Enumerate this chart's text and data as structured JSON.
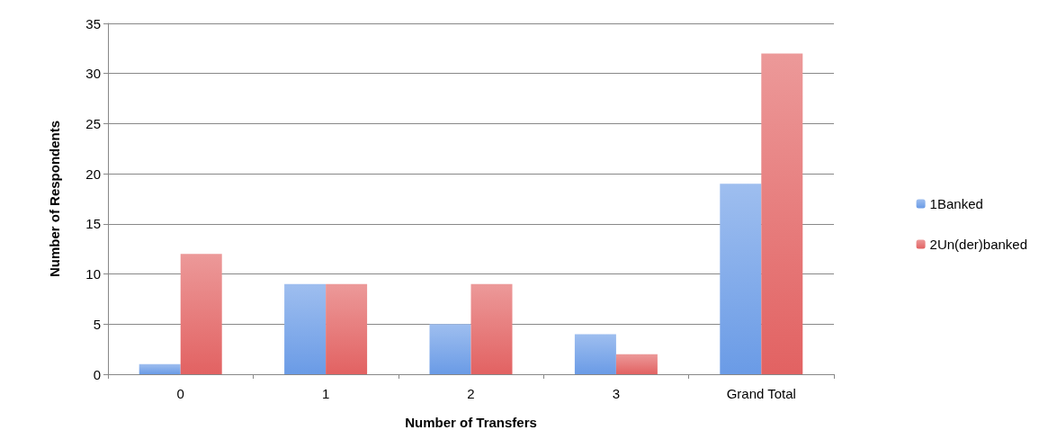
{
  "chart_data": {
    "type": "bar",
    "xlabel": "Number of Transfers",
    "ylabel": "Number of Respondents",
    "categories": [
      "0",
      "1",
      "2",
      "3",
      "Grand Total"
    ],
    "series": [
      {
        "name": "1Banked",
        "color": "#6a9be6",
        "values": [
          1,
          9,
          5,
          4,
          19
        ]
      },
      {
        "name": "2Un(der)banked",
        "color": "#e26262",
        "values": [
          12,
          9,
          9,
          2,
          32
        ]
      }
    ],
    "ylim": [
      0,
      35
    ],
    "yticks": [
      0,
      5,
      10,
      15,
      20,
      25,
      30,
      35
    ],
    "grid": "y",
    "legend": "right"
  }
}
